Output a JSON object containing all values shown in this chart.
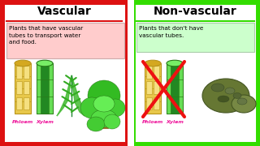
{
  "left_title": "Vascular",
  "right_title": "Non-vascular",
  "left_border_color": "#DD1111",
  "right_border_color": "#33DD00",
  "left_box_bg": "#FFCCCC",
  "right_box_bg": "#CCFFCC",
  "left_desc": "Plants that have vascular\ntubes to transport water\nand food.",
  "right_desc": "Plants that don't have\nvascular tubes.",
  "left_label1": "Phloem",
  "left_label2": "Xylem",
  "right_label1": "Phloem",
  "right_label2": "Xylem",
  "label_color": "#EE1199",
  "title_fontsize": 10,
  "desc_fontsize": 5.2,
  "label_fontsize": 4.5,
  "border_lw": 5
}
